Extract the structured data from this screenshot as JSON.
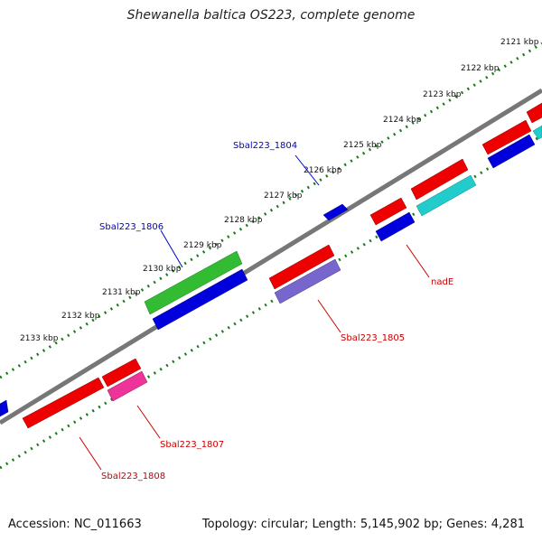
{
  "title": "Shewanella baltica OS223, complete genome",
  "footer": {
    "accession": "Accession: NC_011663",
    "summary": "Topology: circular; Length: 5,145,902 bp; Genes: 4,281"
  },
  "ticks": [
    "2121 kbp",
    "2122 kbp",
    "2123 kbp",
    "2124 kbp",
    "2125 kbp",
    "2126 kbp",
    "2127 kbp",
    "2128 kbp",
    "2129 kbp",
    "2130 kbp",
    "2131 kbp",
    "2132 kbp",
    "2133 kbp"
  ],
  "genes": [
    {
      "label": "Sbal223_1804",
      "color": "#0000cc"
    },
    {
      "label": "Sbal223_1806",
      "color": "#0000cc"
    },
    {
      "label": "nadE",
      "color": "#cc0000"
    },
    {
      "label": "Sbal223_1805",
      "color": "#cc0000"
    },
    {
      "label": "Sbal223_1807",
      "color": "#cc0000"
    },
    {
      "label": "Sbal223_1808",
      "color": "#cc0000"
    }
  ],
  "colors": {
    "backbone": "#777777",
    "tick_track": "#1a7a1a",
    "feature_red": "#ee0000",
    "feature_blue": "#0000dd",
    "feature_green": "#33bb33",
    "feature_cyan": "#22cccc",
    "feature_purple": "#7766cc",
    "feature_pink": "#ee3399"
  }
}
